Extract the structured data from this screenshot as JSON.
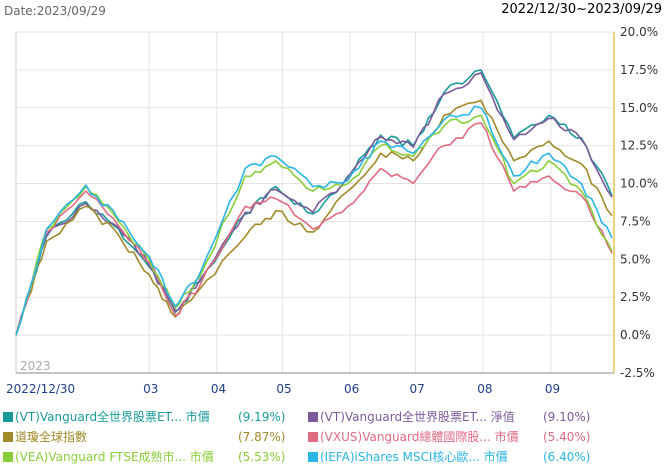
{
  "header": {
    "date_label": "Date:2023/09/29",
    "range_label": "2022/12/30~2023/09/29"
  },
  "chart_data": {
    "type": "line",
    "year_label": "2023",
    "x_ticks": [
      "2022/12/30",
      "03",
      "04",
      "05",
      "06",
      "07",
      "08",
      "09"
    ],
    "y_ticks": [
      "20.0%",
      "17.5%",
      "15.0%",
      "12.5%",
      "10.0%",
      "7.5%",
      "5.0%",
      "2.5%",
      "0.0%",
      "-2.5%"
    ],
    "ylim": [
      -2.5,
      20.0
    ],
    "x_dates": [
      "2022-12-30",
      "2023-01-13",
      "2023-01-31",
      "2023-02-15",
      "2023-03-01",
      "2023-03-13",
      "2023-03-24",
      "2023-04-14",
      "2023-04-28",
      "2023-05-15",
      "2023-05-31",
      "2023-06-15",
      "2023-06-30",
      "2023-07-14",
      "2023-07-31",
      "2023-08-15",
      "2023-08-31",
      "2023-09-15",
      "2023-09-29"
    ],
    "series": [
      {
        "name": "(VT)Vanguard全世界股票ET...",
        "type_label": "市價",
        "value_label": "(9.19%)",
        "color": "#1a9a9a",
        "values": [
          0,
          6.5,
          8.8,
          7.0,
          4.5,
          1.5,
          3.5,
          8.0,
          9.8,
          8.0,
          10.5,
          13.2,
          12.5,
          16.0,
          17.5,
          13.0,
          14.5,
          13.0,
          9.19
        ]
      },
      {
        "name": "(VT)Vanguard全世界股票ET...",
        "type_label": "淨值",
        "value_label": "(9.10%)",
        "color": "#7b5a9a",
        "values": [
          0,
          6.6,
          8.7,
          7.1,
          4.6,
          1.6,
          3.6,
          8.1,
          9.6,
          8.1,
          10.4,
          13.1,
          12.4,
          15.9,
          17.3,
          12.9,
          14.3,
          12.9,
          9.1
        ]
      },
      {
        "name": "道瓊全球指數",
        "type_label": "",
        "value_label": "(7.87%)",
        "color": "#a08a2a",
        "values": [
          0,
          6.2,
          8.5,
          6.6,
          4.0,
          1.2,
          3.0,
          6.5,
          8.2,
          6.8,
          9.5,
          12.0,
          11.5,
          14.5,
          15.5,
          11.5,
          12.8,
          11.3,
          7.87
        ]
      },
      {
        "name": "(VXUS)Vanguard總體國際股...",
        "type_label": "市價",
        "value_label": "(5.40%)",
        "color": "#e06a80",
        "values": [
          0,
          6.8,
          9.5,
          7.2,
          4.8,
          1.3,
          3.2,
          8.5,
          9.0,
          7.0,
          8.5,
          11.0,
          10.0,
          12.5,
          14.0,
          9.5,
          10.5,
          9.2,
          5.4
        ]
      },
      {
        "name": "(VEA)Vanguard FTSE成熟市...",
        "type_label": "市價",
        "value_label": "(5.53%)",
        "color": "#8acd3a",
        "values": [
          0,
          7.0,
          9.8,
          7.5,
          5.0,
          1.8,
          3.8,
          10.5,
          11.5,
          9.5,
          10.0,
          12.5,
          11.8,
          13.8,
          14.5,
          10.0,
          11.5,
          9.5,
          5.53
        ]
      },
      {
        "name": "(IEFA)iShares MSCI核心歐...",
        "type_label": "市價",
        "value_label": "(6.40%)",
        "color": "#2ab5e5",
        "values": [
          0,
          7.0,
          9.9,
          7.6,
          5.2,
          1.9,
          4.0,
          11.0,
          11.8,
          9.8,
          10.2,
          12.8,
          12.0,
          14.2,
          15.0,
          10.5,
          12.0,
          10.0,
          6.4
        ]
      }
    ]
  }
}
